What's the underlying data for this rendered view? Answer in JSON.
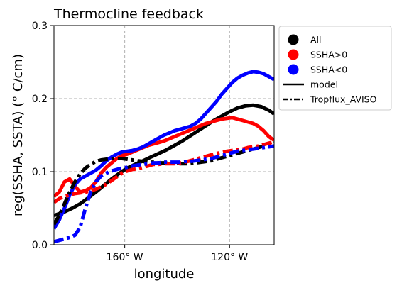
{
  "chart_data": {
    "type": "line",
    "title": "Thermocline feedback",
    "xlabel": "longitude",
    "ylabel": "reg(SSHA, SSTA) ($^\\circ$C/cm)",
    "ylabel_text": "reg(SSHA, SSTA) (° C/cm)",
    "xlim": [
      -187,
      -103
    ],
    "ylim": [
      0.0,
      0.3
    ],
    "x_ticks": [
      -160,
      -120
    ],
    "x_tick_labels": [
      "160$^\\circ$W",
      "120$^\\circ$W"
    ],
    "x_tick_text": [
      "160° W",
      "120° W"
    ],
    "y_ticks": [
      0.0,
      0.1,
      0.2,
      0.3
    ],
    "y_tick_labels": [
      "0.0",
      "0.1",
      "0.2",
      "0.3"
    ],
    "grid": true,
    "legend_position": "outside-right-top",
    "legend": [
      {
        "label": "All",
        "marker": "circle",
        "color": "#000000"
      },
      {
        "label": "SSHA>0",
        "marker": "circle",
        "color": "#ff0000"
      },
      {
        "label": "SSHA<0",
        "marker": "circle",
        "color": "#0000ff"
      },
      {
        "label": "model",
        "line": "solid",
        "color": "#000000"
      },
      {
        "label": "Tropflux_AVISO",
        "line": "dashdot",
        "color": "#000000"
      }
    ],
    "series": [
      {
        "group": "All",
        "source": "model",
        "color": "#000000",
        "style": "solid",
        "x": [
          -187,
          -183,
          -180,
          -177,
          -174,
          -171,
          -168,
          -165,
          -162,
          -159,
          -156,
          -153,
          -150,
          -147,
          -144,
          -141,
          -138,
          -135,
          -132,
          -129,
          -126,
          -123,
          -120,
          -117,
          -114,
          -111,
          -108,
          -105,
          -103
        ],
        "y": [
          0.04,
          0.045,
          0.05,
          0.056,
          0.064,
          0.072,
          0.081,
          0.09,
          0.098,
          0.105,
          0.11,
          0.115,
          0.12,
          0.125,
          0.13,
          0.136,
          0.142,
          0.149,
          0.156,
          0.163,
          0.17,
          0.176,
          0.182,
          0.187,
          0.19,
          0.191,
          0.189,
          0.184,
          0.179
        ]
      },
      {
        "group": "SSHA>0",
        "source": "model",
        "color": "#ff0000",
        "style": "solid",
        "x": [
          -187,
          -185,
          -183,
          -181,
          -179,
          -177,
          -175,
          -173,
          -171,
          -169,
          -167,
          -165,
          -163,
          -161,
          -159,
          -157,
          -155,
          -153,
          -151,
          -149,
          -147,
          -145,
          -143,
          -141,
          -139,
          -137,
          -135,
          -133,
          -131,
          -129,
          -127,
          -125,
          -123,
          -121,
          -119,
          -117,
          -115,
          -113,
          -111,
          -109,
          -107,
          -105,
          -103
        ],
        "y": [
          0.066,
          0.072,
          0.086,
          0.09,
          0.08,
          0.072,
          0.074,
          0.078,
          0.086,
          0.098,
          0.106,
          0.112,
          0.118,
          0.122,
          0.124,
          0.127,
          0.13,
          0.133,
          0.136,
          0.138,
          0.14,
          0.142,
          0.145,
          0.148,
          0.151,
          0.154,
          0.157,
          0.16,
          0.163,
          0.166,
          0.168,
          0.17,
          0.172,
          0.173,
          0.174,
          0.172,
          0.17,
          0.168,
          0.166,
          0.162,
          0.156,
          0.148,
          0.143
        ]
      },
      {
        "group": "SSHA<0",
        "source": "model",
        "color": "#0000ff",
        "style": "solid",
        "x": [
          -187,
          -185,
          -183,
          -181,
          -179,
          -177,
          -175,
          -173,
          -171,
          -169,
          -167,
          -165,
          -163,
          -161,
          -159,
          -157,
          -155,
          -153,
          -151,
          -149,
          -147,
          -145,
          -143,
          -141,
          -139,
          -137,
          -135,
          -133,
          -131,
          -129,
          -127,
          -125,
          -123,
          -121,
          -119,
          -117,
          -115,
          -113,
          -111,
          -109,
          -107,
          -105,
          -103
        ],
        "y": [
          0.022,
          0.034,
          0.05,
          0.068,
          0.082,
          0.09,
          0.094,
          0.098,
          0.102,
          0.108,
          0.115,
          0.12,
          0.124,
          0.127,
          0.128,
          0.129,
          0.131,
          0.134,
          0.138,
          0.142,
          0.146,
          0.15,
          0.153,
          0.156,
          0.158,
          0.16,
          0.162,
          0.166,
          0.172,
          0.18,
          0.188,
          0.196,
          0.206,
          0.214,
          0.222,
          0.228,
          0.232,
          0.235,
          0.237,
          0.236,
          0.234,
          0.23,
          0.226
        ]
      },
      {
        "group": "All",
        "source": "Tropflux_AVISO",
        "color": "#000000",
        "style": "dashdot",
        "x": [
          -187,
          -185,
          -183,
          -181,
          -179,
          -177,
          -175,
          -173,
          -171,
          -169,
          -167,
          -165,
          -163,
          -161,
          -159,
          -157,
          -155,
          -153,
          -151,
          -149,
          -147,
          -145,
          -143,
          -141,
          -139,
          -137,
          -135,
          -133,
          -131,
          -129,
          -127,
          -125,
          -123,
          -121,
          -119,
          -117,
          -115,
          -113,
          -111,
          -109,
          -107,
          -105,
          -103
        ],
        "y": [
          0.028,
          0.04,
          0.056,
          0.072,
          0.086,
          0.097,
          0.105,
          0.11,
          0.114,
          0.116,
          0.117,
          0.118,
          0.118,
          0.118,
          0.117,
          0.116,
          0.115,
          0.114,
          0.113,
          0.113,
          0.112,
          0.112,
          0.112,
          0.112,
          0.111,
          0.111,
          0.111,
          0.112,
          0.113,
          0.114,
          0.115,
          0.117,
          0.119,
          0.121,
          0.123,
          0.125,
          0.127,
          0.129,
          0.131,
          0.133,
          0.135,
          0.137,
          0.139
        ]
      },
      {
        "group": "SSHA>0",
        "source": "Tropflux_AVISO",
        "color": "#ff0000",
        "style": "dashdot",
        "x": [
          -187,
          -185,
          -183,
          -181,
          -179,
          -177,
          -175,
          -173,
          -171,
          -169,
          -167,
          -165,
          -163,
          -161,
          -159,
          -157,
          -155,
          -153,
          -151,
          -149,
          -147,
          -145,
          -143,
          -141,
          -139,
          -137,
          -135,
          -133,
          -131,
          -129,
          -127,
          -125,
          -123,
          -121,
          -119,
          -117,
          -115,
          -113,
          -111,
          -109,
          -107,
          -105,
          -103
        ],
        "y": [
          0.058,
          0.063,
          0.066,
          0.068,
          0.07,
          0.071,
          0.072,
          0.074,
          0.076,
          0.079,
          0.083,
          0.088,
          0.093,
          0.098,
          0.101,
          0.103,
          0.104,
          0.106,
          0.108,
          0.11,
          0.11,
          0.111,
          0.111,
          0.111,
          0.112,
          0.113,
          0.115,
          0.117,
          0.119,
          0.121,
          0.123,
          0.125,
          0.126,
          0.128,
          0.129,
          0.13,
          0.131,
          0.133,
          0.134,
          0.135,
          0.137,
          0.139,
          0.141
        ]
      },
      {
        "group": "SSHA<0",
        "source": "Tropflux_AVISO",
        "color": "#0000ff",
        "style": "dashdot",
        "x": [
          -187,
          -185,
          -183,
          -181,
          -179,
          -177,
          -175,
          -173,
          -171,
          -169,
          -167,
          -165,
          -163,
          -161,
          -159,
          -157,
          -155,
          -153,
          -151,
          -149,
          -147,
          -145,
          -143,
          -141,
          -139,
          -137,
          -135,
          -133,
          -131,
          -129,
          -127,
          -125,
          -123,
          -121,
          -119,
          -117,
          -115,
          -113,
          -111,
          -109,
          -107,
          -105,
          -103
        ],
        "y": [
          0.004,
          0.006,
          0.008,
          0.01,
          0.013,
          0.024,
          0.05,
          0.072,
          0.086,
          0.094,
          0.098,
          0.101,
          0.103,
          0.105,
          0.106,
          0.108,
          0.109,
          0.11,
          0.111,
          0.112,
          0.112,
          0.113,
          0.113,
          0.113,
          0.113,
          0.114,
          0.114,
          0.115,
          0.116,
          0.117,
          0.118,
          0.12,
          0.122,
          0.124,
          0.126,
          0.128,
          0.129,
          0.13,
          0.131,
          0.132,
          0.133,
          0.134,
          0.135
        ]
      }
    ]
  }
}
